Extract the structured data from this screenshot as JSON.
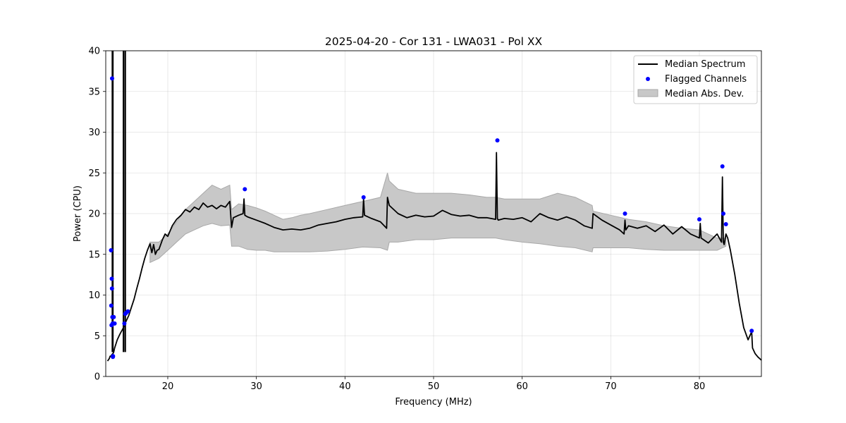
{
  "chart_data": {
    "type": "line",
    "title": "2025-04-20 - Cor 131 - LWA031 - Pol XX",
    "xlabel": "Frequency (MHz)",
    "ylabel": "Power (CPU)",
    "xlim": [
      13.0,
      87.0
    ],
    "ylim": [
      0,
      40
    ],
    "xticks": [
      20,
      30,
      40,
      50,
      60,
      70,
      80
    ],
    "yticks": [
      0,
      5,
      10,
      15,
      20,
      25,
      30,
      35,
      40
    ],
    "grid": true,
    "legend_position": "top-right",
    "legend": [
      "Median Spectrum",
      "Flagged Channels",
      "Median Abs. Dev."
    ],
    "colors": {
      "line": "#000000",
      "flag": "#0000ff",
      "band_fill": "#c8c8c8",
      "band_edge": "#a8a8a8"
    },
    "series": [
      {
        "name": "Median Spectrum",
        "x": [
          13.2,
          13.4,
          13.5,
          13.6,
          13.7,
          13.8,
          13.9,
          14.0,
          14.3,
          14.6,
          14.9,
          15.0,
          15.1,
          15.3,
          15.6,
          15.9,
          16.2,
          16.5,
          16.8,
          17.1,
          17.4,
          17.7,
          18.0,
          18.2,
          18.4,
          18.6,
          18.8,
          19.0,
          19.2,
          19.4,
          19.7,
          20.0,
          20.5,
          21.0,
          21.5,
          22.0,
          22.5,
          23.0,
          23.5,
          24.0,
          24.5,
          25.0,
          25.5,
          26.0,
          26.5,
          27.0,
          27.2,
          27.4,
          28.0,
          28.5,
          28.6,
          28.7,
          29.0,
          30.0,
          31.0,
          32.0,
          33.0,
          34.0,
          35.0,
          36.0,
          37.0,
          38.0,
          39.0,
          40.0,
          41.0,
          42.0,
          42.1,
          42.2,
          43.0,
          44.0,
          44.7,
          44.8,
          45.0,
          46.0,
          47.0,
          48.0,
          49.0,
          50.0,
          51.0,
          52.0,
          53.0,
          54.0,
          55.0,
          56.0,
          57.0,
          57.1,
          57.2,
          57.3,
          58.0,
          59.0,
          60.0,
          61.0,
          62.0,
          63.0,
          64.0,
          65.0,
          66.0,
          67.0,
          67.9,
          68.0,
          69.0,
          70.0,
          71.0,
          71.5,
          71.6,
          71.7,
          72.0,
          73.0,
          74.0,
          75.0,
          76.0,
          77.0,
          78.0,
          79.0,
          80.0,
          80.1,
          80.2,
          81.0,
          82.0,
          82.5,
          82.6,
          82.7,
          82.8,
          83.0,
          83.2,
          83.5,
          84.0,
          84.5,
          85.0,
          85.5,
          85.9,
          86.0,
          86.3,
          86.6,
          87.0
        ],
        "y": [
          1.9,
          2.2,
          2.5,
          2.5,
          2.7,
          2.8,
          3.0,
          3.5,
          4.5,
          5.2,
          5.8,
          6.0,
          6.3,
          6.8,
          7.5,
          8.5,
          9.5,
          10.8,
          12.0,
          13.3,
          14.5,
          15.5,
          16.3,
          15.2,
          16.2,
          15.0,
          15.5,
          15.6,
          16.2,
          16.8,
          17.5,
          17.2,
          18.5,
          19.3,
          19.8,
          20.5,
          20.2,
          20.8,
          20.5,
          21.3,
          20.8,
          21.0,
          20.6,
          21.0,
          20.8,
          21.5,
          18.3,
          19.5,
          19.8,
          20.0,
          21.8,
          19.8,
          19.6,
          19.2,
          18.8,
          18.3,
          18.0,
          18.1,
          18.0,
          18.2,
          18.6,
          18.8,
          19.0,
          19.3,
          19.5,
          19.6,
          21.8,
          19.8,
          19.4,
          19.0,
          18.2,
          22.0,
          21.0,
          20.0,
          19.5,
          19.8,
          19.6,
          19.7,
          20.4,
          19.9,
          19.7,
          19.8,
          19.5,
          19.5,
          19.3,
          27.5,
          19.4,
          19.2,
          19.4,
          19.3,
          19.5,
          19.0,
          20.0,
          19.5,
          19.2,
          19.6,
          19.2,
          18.5,
          18.2,
          20.0,
          19.2,
          18.6,
          18.0,
          17.5,
          19.2,
          18.0,
          18.5,
          18.2,
          18.5,
          17.8,
          18.6,
          17.5,
          18.4,
          17.5,
          17.0,
          18.8,
          17.0,
          16.4,
          17.5,
          16.5,
          24.5,
          16.5,
          16.2,
          17.5,
          17.0,
          15.5,
          12.5,
          9.0,
          6.0,
          4.5,
          5.5,
          3.5,
          2.8,
          2.4,
          2.0
        ]
      },
      {
        "name": "Median Abs. Dev. upper",
        "x": [
          18.0,
          19.0,
          20.0,
          21.0,
          22.0,
          23.0,
          24.0,
          25.0,
          26.0,
          27.0,
          27.2,
          28.0,
          29.0,
          30.0,
          31.0,
          32.0,
          33.0,
          34.0,
          35.0,
          36.0,
          38.0,
          40.0,
          42.0,
          44.0,
          44.8,
          45.0,
          46.0,
          48.0,
          50.0,
          52.0,
          54.0,
          56.0,
          57.0,
          58.0,
          60.0,
          62.0,
          64.0,
          66.0,
          67.9,
          68.0,
          70.0,
          72.0,
          74.0,
          76.0,
          78.0,
          80.0,
          81.0,
          82.0,
          83.0
        ],
        "y": [
          16.5,
          16.5,
          17.5,
          19.0,
          20.5,
          21.5,
          22.5,
          23.5,
          23.0,
          23.5,
          20.5,
          21.2,
          21.0,
          20.7,
          20.3,
          19.8,
          19.3,
          19.5,
          19.8,
          20.0,
          20.5,
          21.0,
          21.5,
          22.0,
          25.0,
          24.0,
          23.0,
          22.5,
          22.5,
          22.5,
          22.3,
          22.0,
          22.0,
          21.8,
          21.8,
          21.8,
          22.5,
          22.0,
          21.0,
          20.3,
          19.8,
          19.3,
          19.0,
          18.5,
          18.2,
          18.0,
          17.5,
          17.0,
          17.0
        ]
      },
      {
        "name": "Median Abs. Dev. lower",
        "x": [
          18.0,
          19.0,
          20.0,
          21.0,
          22.0,
          23.0,
          24.0,
          25.0,
          26.0,
          27.0,
          27.2,
          28.0,
          29.0,
          30.0,
          31.0,
          32.0,
          33.0,
          34.0,
          35.0,
          36.0,
          38.0,
          40.0,
          42.0,
          44.0,
          44.8,
          45.0,
          46.0,
          48.0,
          50.0,
          52.0,
          54.0,
          56.0,
          57.0,
          58.0,
          60.0,
          62.0,
          64.0,
          66.0,
          67.9,
          68.0,
          70.0,
          72.0,
          74.0,
          76.0,
          78.0,
          80.0,
          81.0,
          82.0,
          83.0
        ],
        "y": [
          14.0,
          14.5,
          15.5,
          16.5,
          17.5,
          18.0,
          18.5,
          18.8,
          18.5,
          18.6,
          16.0,
          16.0,
          15.6,
          15.5,
          15.5,
          15.3,
          15.3,
          15.3,
          15.3,
          15.3,
          15.4,
          15.6,
          15.9,
          15.8,
          15.5,
          16.5,
          16.5,
          16.8,
          16.8,
          17.0,
          17.0,
          17.0,
          17.0,
          16.8,
          16.5,
          16.3,
          16.0,
          15.8,
          15.3,
          15.8,
          15.8,
          15.8,
          15.6,
          15.5,
          15.5,
          15.5,
          15.5,
          15.5,
          16.0
        ]
      },
      {
        "name": "Flagged Channels",
        "x": [
          13.6,
          13.62,
          13.65,
          13.68,
          13.7,
          13.72,
          13.75,
          13.78,
          13.8,
          13.82,
          13.85,
          13.9,
          14.0,
          15.1,
          15.2,
          15.3,
          15.5,
          28.7,
          42.1,
          57.2,
          71.6,
          80.0,
          82.6,
          82.7,
          83.0,
          85.9
        ],
        "y": [
          15.5,
          8.7,
          6.3,
          12.0,
          10.8,
          36.6,
          7.3,
          6.5,
          2.4,
          2.5,
          6.5,
          7.3,
          6.5,
          6.5,
          7.7,
          7.8,
          8.0,
          23.0,
          22.0,
          29.0,
          20.0,
          19.3,
          25.8,
          20.0,
          18.7,
          5.6
        ]
      }
    ]
  }
}
